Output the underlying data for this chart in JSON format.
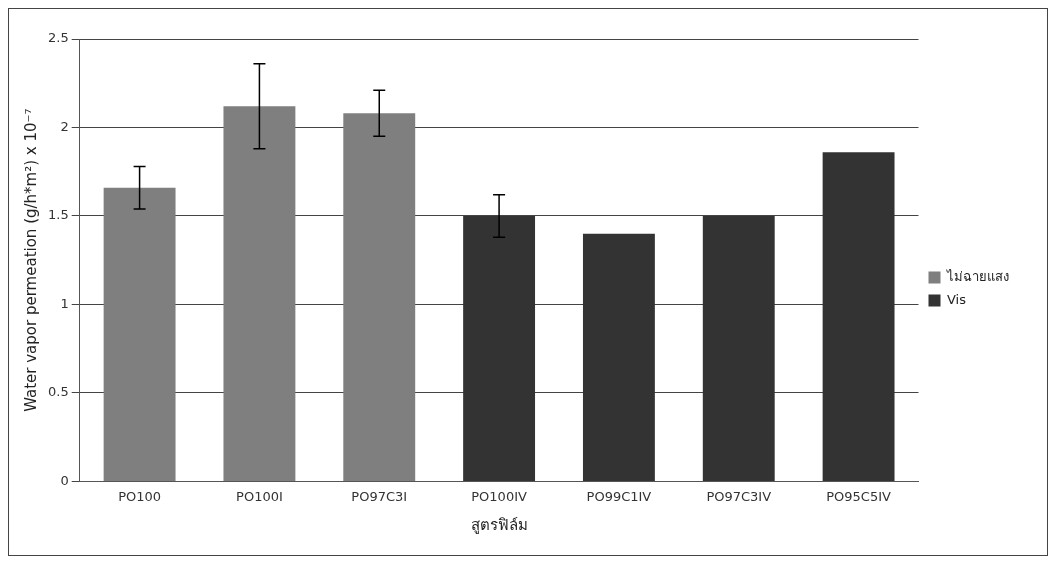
{
  "chart_data": {
    "type": "bar",
    "categories": [
      "PO100",
      "PO100I",
      "PO97C3I",
      "PO100IV",
      "PO99C1IV",
      "PO97C3IV",
      "PO95C5IV"
    ],
    "series": [
      {
        "name": "ไม่ฉายแสง",
        "color": "#7f7f7f",
        "values": [
          1.66,
          2.12,
          2.08,
          null,
          null,
          null,
          null
        ],
        "errors": [
          0.12,
          0.24,
          0.13,
          null,
          null,
          null,
          null
        ]
      },
      {
        "name": "Vis",
        "color": "#333333",
        "values": [
          null,
          null,
          null,
          1.5,
          1.4,
          1.5,
          1.86
        ],
        "errors": [
          null,
          null,
          null,
          0.12,
          null,
          null,
          null
        ]
      }
    ],
    "xlabel": "สูตรฟิล์ม",
    "ylabel": "Water vapor permeation (g/h*m²) x 10⁻⁷",
    "ylim": [
      0,
      2.5
    ],
    "yticks": [
      0,
      0.5,
      1,
      1.5,
      2,
      2.5
    ],
    "grid": "y",
    "legend": "right"
  }
}
